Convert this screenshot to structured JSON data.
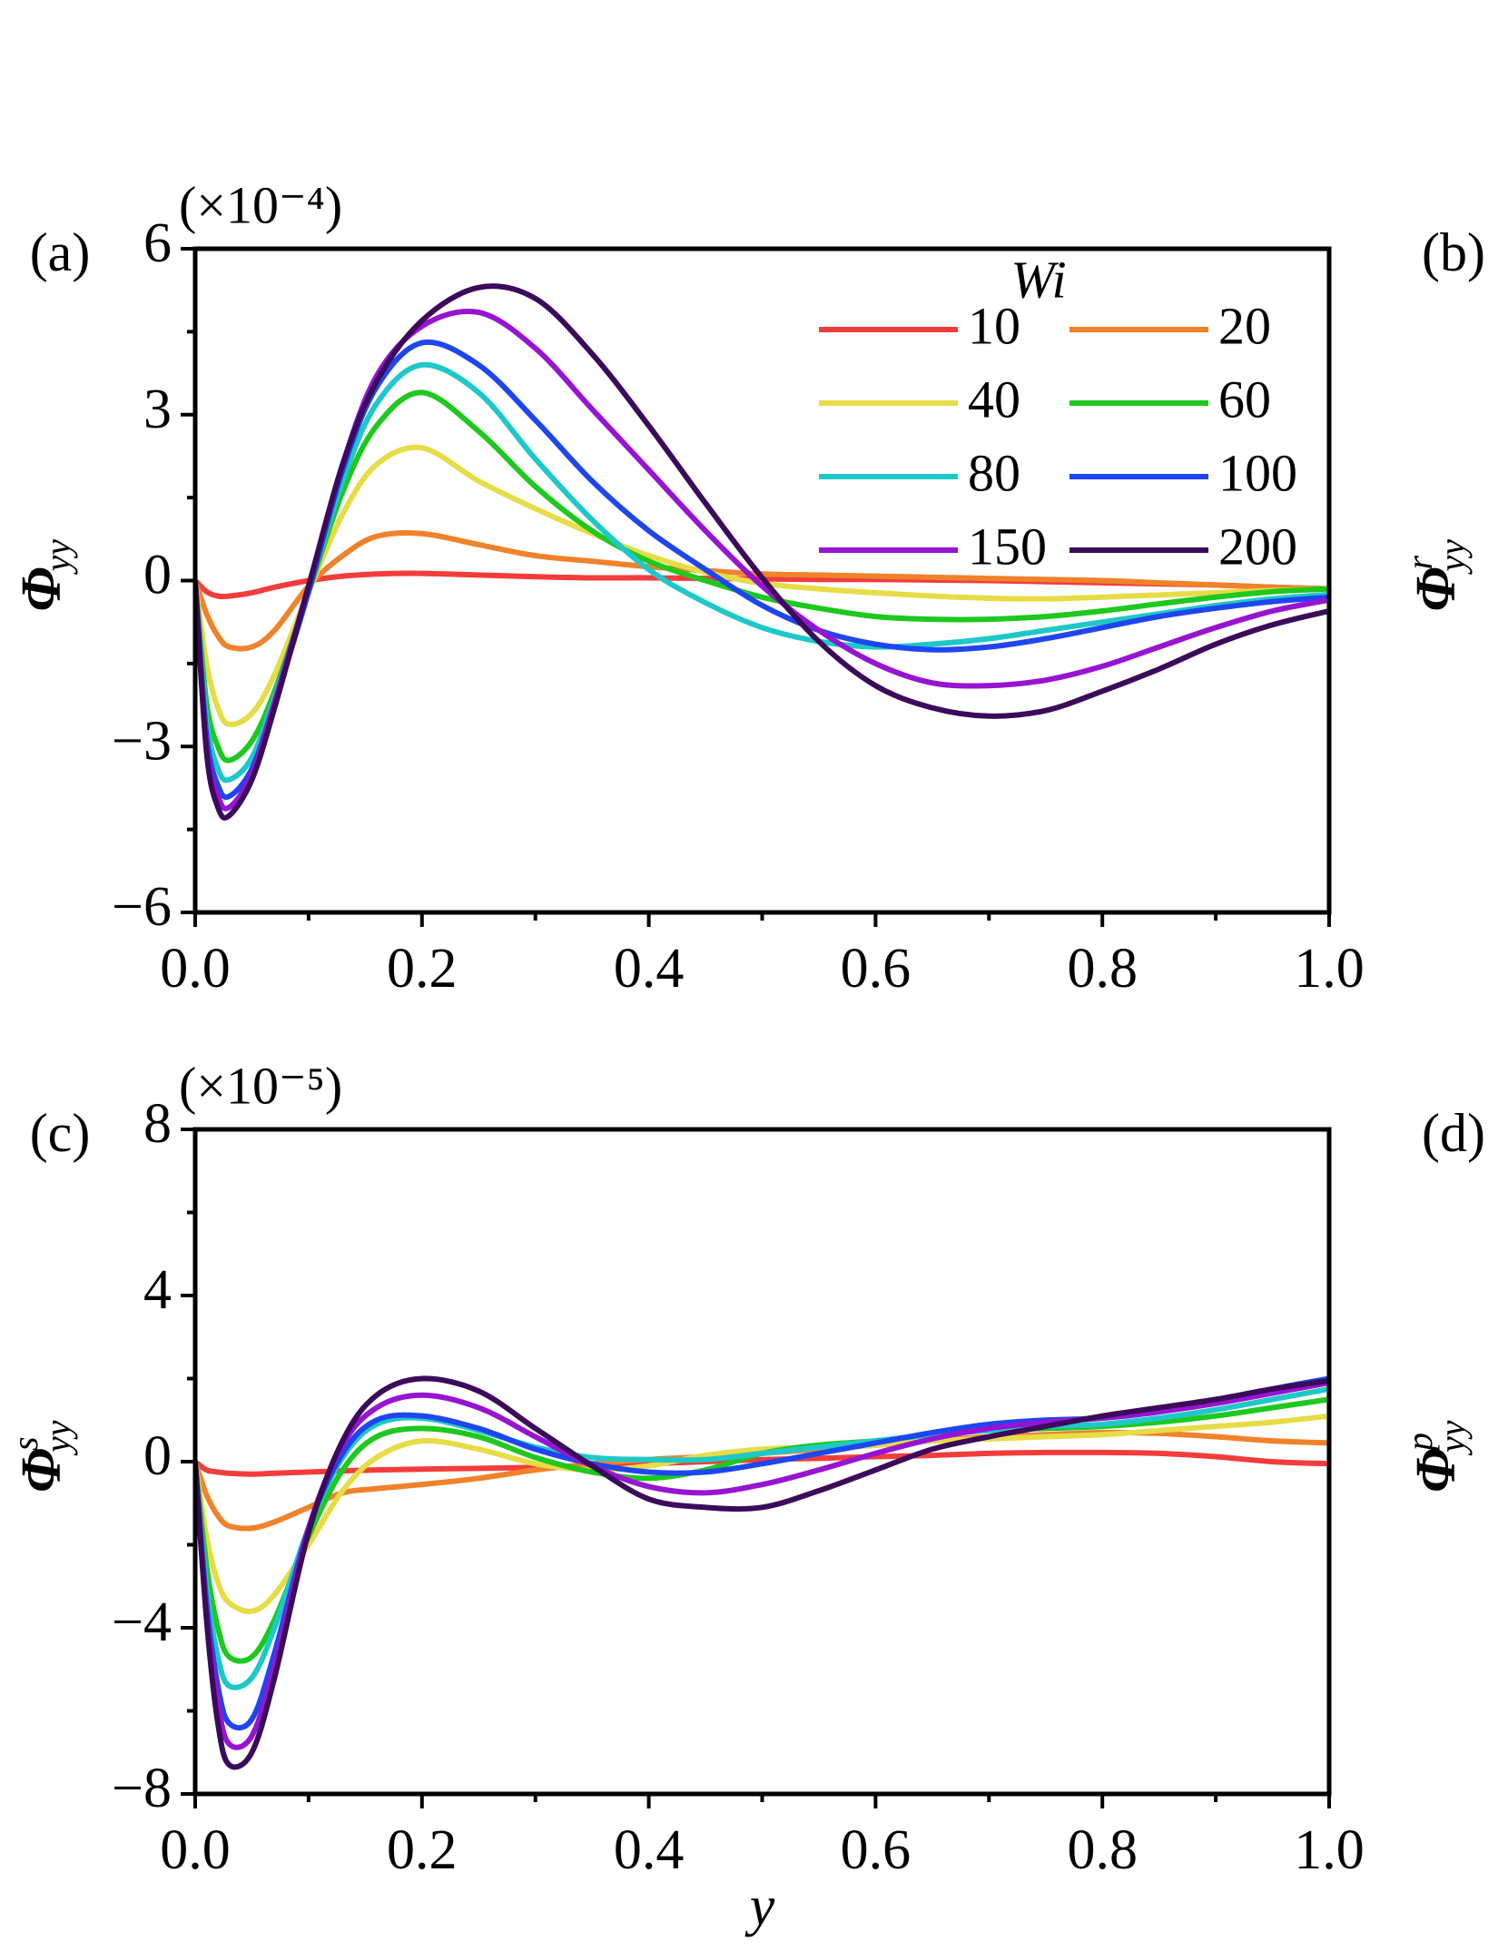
{
  "chart_data": [
    {
      "type": "line",
      "panel_label": "(a)",
      "multiplier": "(×10⁻⁴)",
      "ylabel": "Φ",
      "ylabel_sub": "yy",
      "x": [
        0,
        0.01,
        0.02,
        0.03,
        0.05,
        0.07,
        0.1,
        0.13,
        0.16,
        0.2,
        0.25,
        0.3,
        0.35,
        0.4,
        0.45,
        0.5,
        0.55,
        0.6,
        0.65,
        0.7,
        0.75,
        0.8,
        0.85,
        0.9,
        0.95,
        1.0
      ],
      "xlim": [
        0,
        1
      ],
      "ylim": [
        -6,
        6
      ],
      "xticks": [
        {
          "value": 0,
          "label": "0.0"
        },
        0.2,
        0.4,
        0.6,
        0.8,
        {
          "value": 1,
          "label": "1.0"
        }
      ],
      "yticks": [
        {
          "value": -6,
          "label": "−6"
        },
        {
          "value": -3,
          "label": "−3"
        },
        0,
        3,
        6
      ],
      "legend": {
        "title": "Wi",
        "columns": 2
      },
      "series": [
        {
          "name": "10",
          "color": "#f23c3c",
          "values": [
            0,
            -0.2,
            -0.28,
            -0.28,
            -0.22,
            -0.12,
            0,
            0.08,
            0.12,
            0.13,
            0.1,
            0.07,
            0.05,
            0.05,
            0.04,
            0.03,
            0.02,
            0.02,
            0.01,
            0,
            -0.02,
            -0.04,
            -0.06,
            -0.08,
            -0.12,
            -0.15
          ]
        },
        {
          "name": "20",
          "color": "#f0822a",
          "values": [
            0,
            -0.6,
            -1.0,
            -1.2,
            -1.2,
            -0.9,
            -0.1,
            0.45,
            0.8,
            0.85,
            0.65,
            0.45,
            0.35,
            0.25,
            0.18,
            0.12,
            0.1,
            0.08,
            0.06,
            0.04,
            0.02,
            0,
            -0.04,
            -0.08,
            -0.12,
            -0.15
          ]
        },
        {
          "name": "40",
          "color": "#e6dc46",
          "values": [
            0,
            -1.5,
            -2.3,
            -2.6,
            -2.4,
            -1.7,
            -0.2,
            1.2,
            2.1,
            2.4,
            1.8,
            1.3,
            0.85,
            0.45,
            0.15,
            -0.05,
            -0.15,
            -0.22,
            -0.28,
            -0.32,
            -0.33,
            -0.3,
            -0.26,
            -0.22,
            -0.18,
            -0.15
          ]
        },
        {
          "name": "60",
          "color": "#1ec81e",
          "values": [
            0,
            -2.2,
            -3.0,
            -3.25,
            -2.9,
            -2.0,
            -0.2,
            1.6,
            2.8,
            3.4,
            2.7,
            1.7,
            0.9,
            0.35,
            0,
            -0.3,
            -0.5,
            -0.65,
            -0.7,
            -0.7,
            -0.65,
            -0.55,
            -0.42,
            -0.3,
            -0.2,
            -0.15
          ]
        },
        {
          "name": "80",
          "color": "#1ec8c8",
          "values": [
            0,
            -2.5,
            -3.4,
            -3.6,
            -3.2,
            -2.1,
            -0.2,
            1.8,
            3.2,
            3.9,
            3.4,
            2.2,
            1.1,
            0.2,
            -0.4,
            -0.85,
            -1.1,
            -1.2,
            -1.15,
            -1.05,
            -0.9,
            -0.75,
            -0.6,
            -0.45,
            -0.33,
            -0.25
          ]
        },
        {
          "name": "100",
          "color": "#1e46f0",
          "values": [
            0,
            -2.8,
            -3.7,
            -3.9,
            -3.4,
            -2.2,
            -0.2,
            2.0,
            3.5,
            4.3,
            3.9,
            2.9,
            1.8,
            0.9,
            0.2,
            -0.45,
            -0.9,
            -1.15,
            -1.25,
            -1.2,
            -1.05,
            -0.85,
            -0.65,
            -0.5,
            -0.38,
            -0.3
          ]
        },
        {
          "name": "150",
          "color": "#9614d2",
          "values": [
            0,
            -3.0,
            -3.9,
            -4.1,
            -3.5,
            -2.2,
            -0.1,
            2.1,
            3.7,
            4.6,
            4.85,
            4.2,
            3.1,
            2.0,
            0.9,
            -0.1,
            -0.9,
            -1.5,
            -1.85,
            -1.9,
            -1.8,
            -1.55,
            -1.2,
            -0.85,
            -0.55,
            -0.35
          ]
        },
        {
          "name": "200",
          "color": "#3c0a5a",
          "values": [
            0,
            -3.1,
            -4.1,
            -4.25,
            -3.6,
            -2.3,
            -0.1,
            2.1,
            3.6,
            4.7,
            5.3,
            5.1,
            4.1,
            2.8,
            1.4,
            0.05,
            -1.1,
            -1.9,
            -2.3,
            -2.45,
            -2.35,
            -2.0,
            -1.6,
            -1.15,
            -0.8,
            -0.55
          ]
        }
      ]
    },
    {
      "type": "line",
      "panel_label": "(c)",
      "multiplier": "(×10⁻⁵)",
      "ylabel": "Φ",
      "ylabel_sub": "yy",
      "ylabel_sup": "s",
      "xlabel": "y",
      "x": [
        0,
        0.01,
        0.02,
        0.03,
        0.05,
        0.07,
        0.1,
        0.13,
        0.16,
        0.2,
        0.25,
        0.3,
        0.35,
        0.4,
        0.45,
        0.5,
        0.55,
        0.6,
        0.65,
        0.7,
        0.75,
        0.8,
        0.85,
        0.9,
        0.95,
        1.0
      ],
      "xlim": [
        0,
        1
      ],
      "ylim": [
        -8,
        8
      ],
      "xticks": [
        {
          "value": 0,
          "label": "0.0"
        },
        0.2,
        0.4,
        0.6,
        0.8,
        {
          "value": 1,
          "label": "1.0"
        }
      ],
      "yticks": [
        {
          "value": -8,
          "label": "−8"
        },
        {
          "value": -4,
          "label": "−4"
        },
        0,
        4,
        8
      ],
      "series": [
        {
          "color": "#f23c3c",
          "values": [
            0,
            -0.2,
            -0.25,
            -0.28,
            -0.3,
            -0.28,
            -0.25,
            -0.22,
            -0.2,
            -0.18,
            -0.16,
            -0.14,
            -0.1,
            -0.05,
            0,
            0.05,
            0.08,
            0.12,
            0.15,
            0.2,
            0.22,
            0.22,
            0.2,
            0.12,
            0,
            -0.05
          ]
        },
        {
          "color": "#f0822a",
          "values": [
            0,
            -0.8,
            -1.3,
            -1.55,
            -1.6,
            -1.45,
            -1.1,
            -0.75,
            -0.65,
            -0.55,
            -0.4,
            -0.2,
            -0.05,
            0.05,
            0.12,
            0.2,
            0.3,
            0.4,
            0.5,
            0.6,
            0.65,
            0.7,
            0.68,
            0.6,
            0.5,
            0.45
          ]
        },
        {
          "color": "#e6dc46",
          "values": [
            0,
            -1.8,
            -2.9,
            -3.4,
            -3.6,
            -3.2,
            -2.0,
            -0.7,
            0.1,
            0.5,
            0.3,
            -0.05,
            -0.2,
            -0.1,
            0.15,
            0.3,
            0.35,
            0.4,
            0.5,
            0.55,
            0.6,
            0.65,
            0.75,
            0.85,
            0.95,
            1.1
          ]
        },
        {
          "color": "#1ec81e",
          "values": [
            0,
            -2.5,
            -4.0,
            -4.7,
            -4.7,
            -3.8,
            -1.8,
            -0.2,
            0.6,
            0.8,
            0.6,
            0.1,
            -0.25,
            -0.4,
            -0.2,
            0.2,
            0.4,
            0.5,
            0.65,
            0.75,
            0.8,
            0.85,
            0.95,
            1.1,
            1.3,
            1.5
          ]
        },
        {
          "color": "#1ec8c8",
          "values": [
            0,
            -3,
            -4.7,
            -5.4,
            -5.2,
            -4.0,
            -1.6,
            0.1,
            0.9,
            1.05,
            0.75,
            0.35,
            0.1,
            0.05,
            0.05,
            0.2,
            0.35,
            0.5,
            0.65,
            0.75,
            0.85,
            0.9,
            1.05,
            1.25,
            1.5,
            1.75
          ]
        },
        {
          "color": "#1e46f0",
          "values": [
            0,
            -3.4,
            -5.4,
            -6.3,
            -6.2,
            -4.6,
            -1.6,
            0.2,
            1.0,
            1.1,
            0.8,
            0.3,
            -0.05,
            -0.25,
            -0.25,
            -0.05,
            0.2,
            0.45,
            0.7,
            0.9,
            1.0,
            1.05,
            1.2,
            1.45,
            1.75,
            2.0
          ]
        },
        {
          "color": "#9614d2",
          "values": [
            0,
            -3.6,
            -5.8,
            -6.8,
            -6.6,
            -4.9,
            -1.6,
            0.4,
            1.3,
            1.6,
            1.3,
            0.6,
            -0.1,
            -0.6,
            -0.75,
            -0.55,
            -0.2,
            0.2,
            0.55,
            0.8,
            0.95,
            1.05,
            1.2,
            1.4,
            1.65,
            1.9
          ]
        },
        {
          "color": "#3c0a5a",
          "values": [
            0,
            -3.8,
            -6.3,
            -7.3,
            -7.0,
            -5.2,
            -1.7,
            0.5,
            1.6,
            2.0,
            1.7,
            0.8,
            -0.1,
            -0.9,
            -1.1,
            -1.1,
            -0.7,
            -0.2,
            0.3,
            0.6,
            0.85,
            1.1,
            1.3,
            1.5,
            1.75,
            1.95
          ]
        }
      ]
    }
  ],
  "cropped_panels": [
    {
      "panel_label": "(b)",
      "ylabel": "Φ",
      "ylabel_sub": "yy",
      "ylabel_sup": "r"
    },
    {
      "panel_label": "(d)",
      "ylabel": "Φ",
      "ylabel_sub": "yy",
      "ylabel_sup": "p"
    }
  ]
}
